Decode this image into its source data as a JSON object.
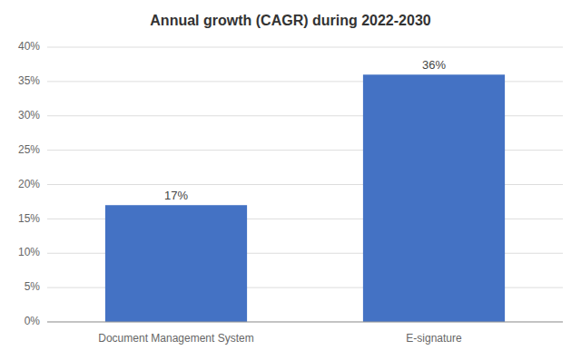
{
  "chart_data": {
    "type": "bar",
    "title": "Annual growth (CAGR) during 2022-2030",
    "categories": [
      "Document Management System",
      "E-signature"
    ],
    "values": [
      17,
      36
    ],
    "value_labels": [
      "17%",
      "36%"
    ],
    "data_labels": true,
    "color": "#4472C4",
    "ylim": [
      0,
      40
    ],
    "yticks": [
      {
        "value": 0,
        "label": "0%"
      },
      {
        "value": 5,
        "label": "5%"
      },
      {
        "value": 10,
        "label": "10%"
      },
      {
        "value": 15,
        "label": "15%"
      },
      {
        "value": 20,
        "label": "20%"
      },
      {
        "value": 25,
        "label": "25%"
      },
      {
        "value": 30,
        "label": "30%"
      },
      {
        "value": 35,
        "label": "35%"
      },
      {
        "value": 40,
        "label": "40%"
      }
    ],
    "grid": true
  }
}
